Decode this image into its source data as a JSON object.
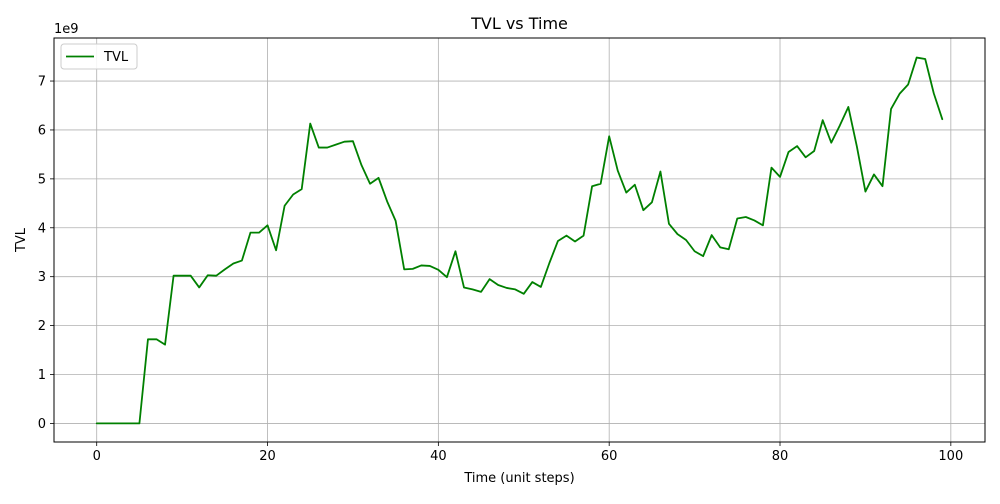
{
  "chart_data": {
    "type": "line",
    "title": "TVL vs Time",
    "xlabel": "Time (unit steps)",
    "ylabel": "TVL",
    "y_offset_label": "1e9",
    "xlim": [
      -5,
      104
    ],
    "ylim": [
      -0.38,
      7.88
    ],
    "x_ticks": [
      0,
      20,
      40,
      60,
      80,
      100
    ],
    "y_ticks": [
      0,
      1,
      2,
      3,
      4,
      5,
      6,
      7
    ],
    "grid": true,
    "legend": {
      "position": "upper-left",
      "entries": [
        "TVL"
      ]
    },
    "series": [
      {
        "name": "TVL",
        "color": "#008000",
        "x": [
          0,
          1,
          2,
          3,
          4,
          5,
          6,
          7,
          8,
          9,
          10,
          11,
          12,
          13,
          14,
          15,
          16,
          17,
          18,
          19,
          20,
          21,
          22,
          23,
          24,
          25,
          26,
          27,
          28,
          29,
          30,
          31,
          32,
          33,
          34,
          35,
          36,
          37,
          38,
          39,
          40,
          41,
          42,
          43,
          44,
          45,
          46,
          47,
          48,
          49,
          50,
          51,
          52,
          53,
          54,
          55,
          56,
          57,
          58,
          59,
          60,
          61,
          62,
          63,
          64,
          65,
          66,
          67,
          68,
          69,
          70,
          71,
          72,
          73,
          74,
          75,
          76,
          77,
          78,
          79,
          80,
          81,
          82,
          83,
          84,
          85,
          86,
          87,
          88,
          89,
          90,
          91,
          92,
          93,
          94,
          95,
          96,
          97,
          98,
          99
        ],
        "values": [
          0.0,
          0.0,
          0.0,
          0.0,
          0.0,
          0.0,
          1.72,
          1.72,
          1.61,
          3.02,
          3.02,
          3.02,
          2.78,
          3.03,
          3.02,
          3.15,
          3.27,
          3.33,
          3.9,
          3.9,
          4.05,
          3.54,
          4.45,
          4.68,
          4.79,
          6.13,
          5.64,
          5.64,
          5.7,
          5.76,
          5.77,
          5.28,
          4.9,
          5.02,
          4.54,
          4.14,
          3.15,
          3.16,
          3.23,
          3.22,
          3.14,
          2.99,
          3.52,
          2.78,
          2.74,
          2.69,
          2.95,
          2.83,
          2.77,
          2.74,
          2.65,
          2.89,
          2.79,
          3.28,
          3.73,
          3.84,
          3.72,
          3.84,
          4.85,
          4.9,
          5.87,
          5.17,
          4.72,
          4.88,
          4.36,
          4.52,
          5.15,
          4.08,
          3.87,
          3.75,
          3.52,
          3.42,
          3.85,
          3.6,
          3.56,
          4.19,
          4.22,
          4.15,
          4.05,
          5.23,
          5.04,
          5.55,
          5.67,
          5.44,
          5.57,
          6.2,
          5.74,
          6.09,
          6.47,
          5.66,
          4.74,
          5.09,
          4.85,
          6.43,
          6.74,
          6.93,
          7.48,
          7.45,
          6.75,
          6.22
        ]
      }
    ]
  }
}
